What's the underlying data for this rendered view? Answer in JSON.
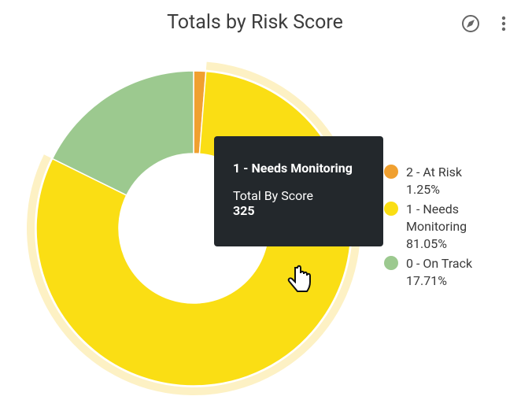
{
  "chart_data": {
    "type": "donut",
    "title": "Totals by Risk Score",
    "categories": [
      "2 - At Risk",
      "1 - Needs Monitoring",
      "0 - On Track"
    ],
    "values": [
      1.25,
      81.05,
      17.71
    ],
    "value_labels": [
      "1.25%",
      "81.05%",
      "17.71%"
    ],
    "colors": [
      "#f0a030",
      "#fade14",
      "#9cc98f"
    ],
    "legend": "right",
    "tooltip": {
      "title": "1 - Needs Monitoring",
      "label": "Total By Score",
      "value": 325
    }
  }
}
